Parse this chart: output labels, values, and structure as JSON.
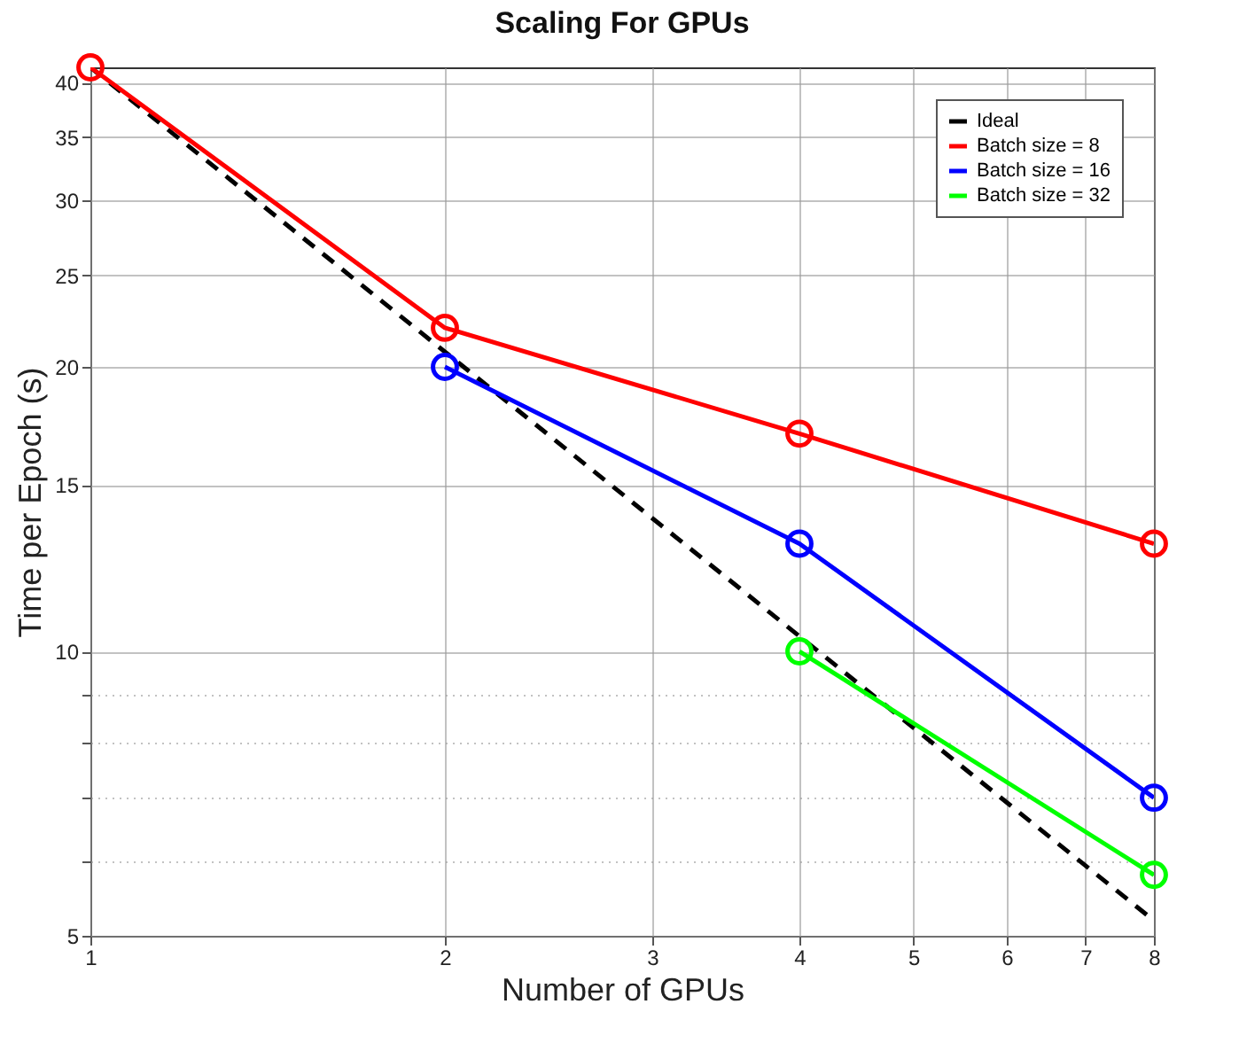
{
  "chart_data": {
    "type": "line",
    "title": "Scaling For GPUs",
    "xlabel": "Number of GPUs",
    "ylabel": "Time per Epoch (s)",
    "x": [
      1,
      2,
      4,
      8
    ],
    "series": [
      {
        "name": "Ideal",
        "color": "#000000",
        "values": [
          41.5,
          20.75,
          10.375,
          5.19
        ],
        "line_style": "dashed",
        "marker": "none"
      },
      {
        "name": "Batch size = 8",
        "color": "#ff0000",
        "values": [
          41.5,
          22,
          17,
          13
        ]
      },
      {
        "name": "Batch size = 16",
        "color": "#0000ff",
        "x": [
          2,
          4,
          8
        ],
        "values": [
          20,
          13,
          7
        ]
      },
      {
        "name": "Batch size = 32",
        "color": "#00ff00",
        "x": [
          4,
          8
        ],
        "values": [
          10,
          5.8
        ]
      }
    ],
    "log": "xy",
    "xlim": [
      1,
      8
    ],
    "xticks": [
      1,
      2,
      3,
      4,
      5,
      6,
      7,
      8
    ],
    "ylim": [
      5,
      41.5
    ],
    "yticks": [
      5,
      10,
      15,
      20,
      25,
      30,
      35,
      40
    ],
    "grid": true,
    "legend": "top right",
    "marker": "circle",
    "line_style": "solid"
  }
}
